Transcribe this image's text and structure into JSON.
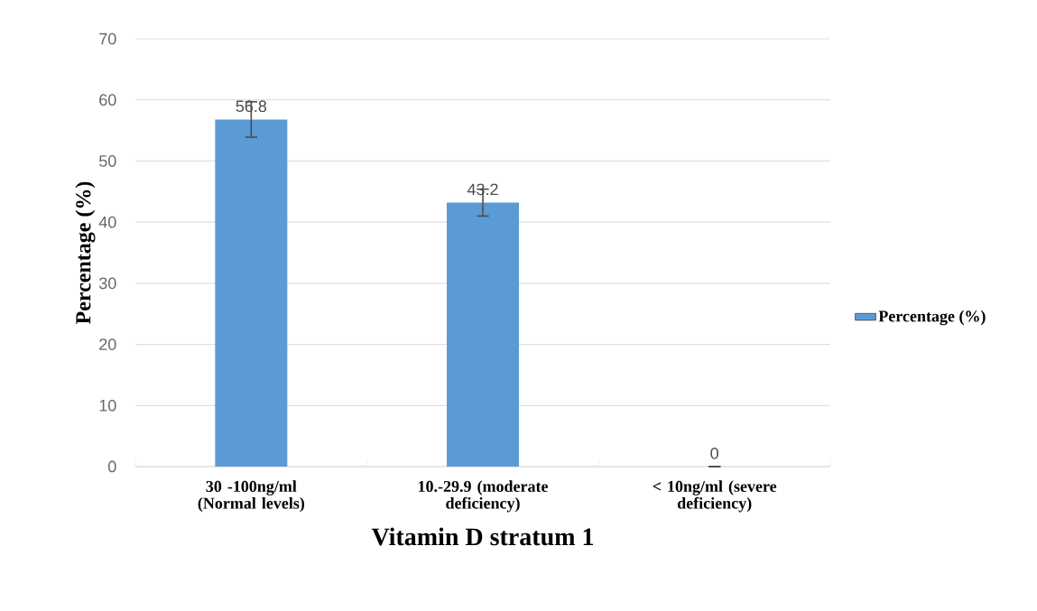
{
  "chart_data": {
    "type": "bar",
    "xlabel": "Vitamin D stratum 1",
    "ylabel": "Percentage (%)",
    "categories": [
      "30 -100ng/ml (Normal levels)",
      "10.-29.9 (moderate deficiency)",
      "< 10ng/ml (severe deficiency)"
    ],
    "series": [
      {
        "name": "Percentage (%)",
        "color": "#5b9bd5",
        "values": [
          56.8,
          43.2,
          0
        ],
        "errors": [
          2.9,
          2.2,
          null
        ]
      }
    ],
    "ylim": [
      0,
      70
    ],
    "yticks": [
      0,
      10,
      20,
      30,
      40,
      50,
      60,
      70
    ],
    "grid": "y",
    "legend": "right",
    "data_labels": true
  }
}
